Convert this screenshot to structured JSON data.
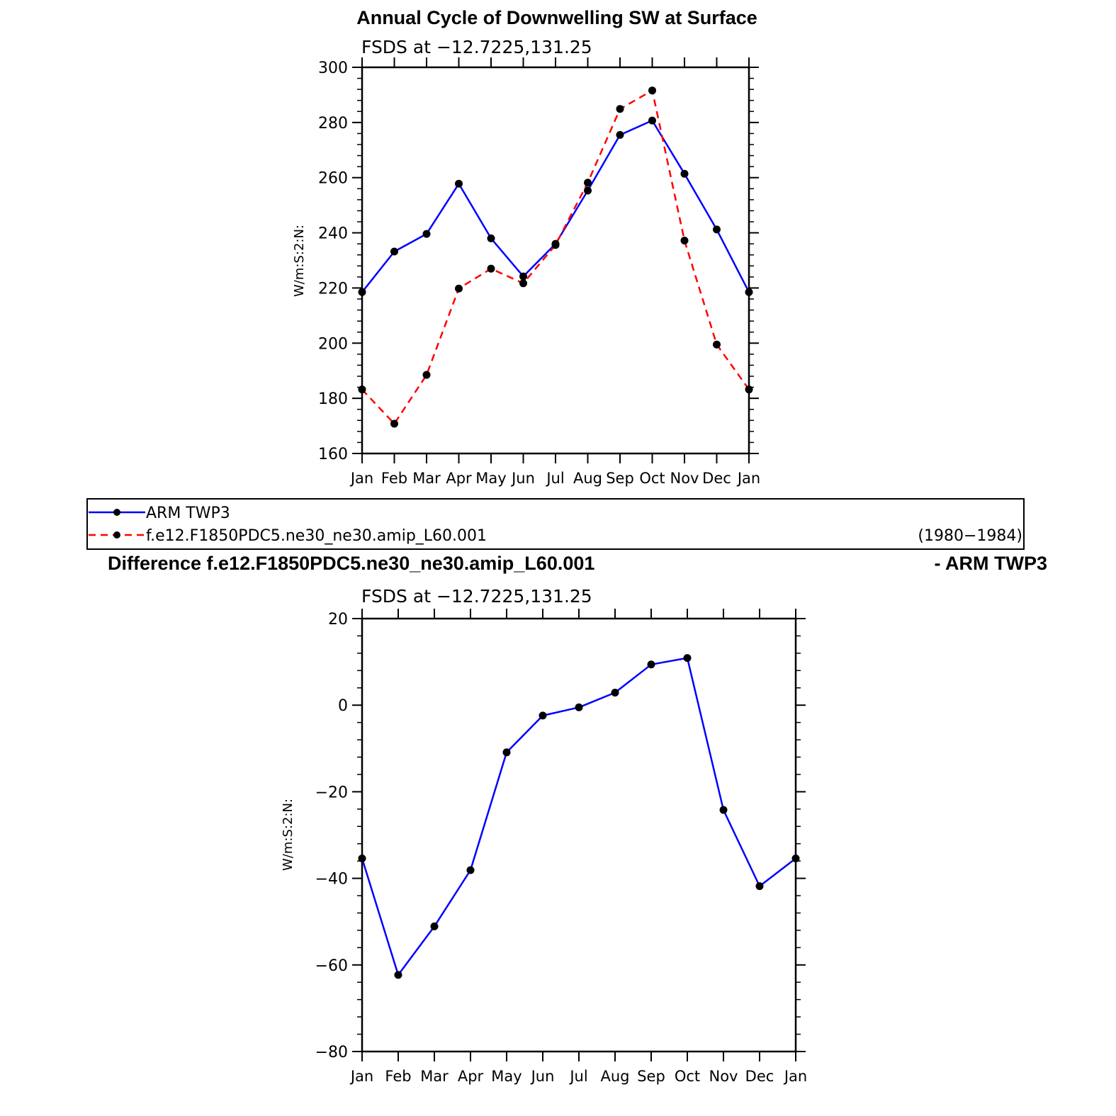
{
  "figure": {
    "top_title": "Annual Cycle of Downwelling SW at Surface",
    "diff_title_left": "Difference f.e12.F1850PDC5.ne30_ne30.amip_L60.001",
    "diff_title_right": "- ARM TWP3"
  },
  "legend": {
    "entries": [
      {
        "label": "ARM TWP3",
        "color": "#0000ff",
        "dash": "solid"
      },
      {
        "label": "f.e12.F1850PDC5.ne30_ne30.amip_L60.001",
        "color": "#ff0000",
        "dash": "dashed"
      }
    ],
    "period": "(1980−1984)"
  },
  "chart_data": [
    {
      "type": "line",
      "title": "FSDS at −12.7225,131.25",
      "xlabel": "",
      "ylabel": "W/m:S:2:N:",
      "categories": [
        "Jan",
        "Feb",
        "Mar",
        "Apr",
        "May",
        "Jun",
        "Jul",
        "Aug",
        "Sep",
        "Oct",
        "Nov",
        "Dec",
        "Jan"
      ],
      "ylim": [
        160,
        300
      ],
      "yticks": [
        160,
        180,
        200,
        220,
        240,
        260,
        280,
        300
      ],
      "series": [
        {
          "name": "ARM TWP3",
          "color": "#0000ff",
          "dash": "solid",
          "values": [
            218.5,
            233.2,
            239.6,
            257.8,
            238.0,
            224.2,
            236.0,
            255.3,
            275.5,
            280.7,
            261.4,
            241.2,
            218.5
          ]
        },
        {
          "name": "f.e12.F1850PDC5.ne30_ne30.amip_L60.001",
          "color": "#ff0000",
          "dash": "dashed",
          "values": [
            183.2,
            170.8,
            188.5,
            219.8,
            227.0,
            221.7,
            235.6,
            258.2,
            284.9,
            291.6,
            237.2,
            199.5,
            183.2
          ]
        }
      ]
    },
    {
      "type": "line",
      "title": "FSDS at −12.7225,131.25",
      "xlabel": "",
      "ylabel": "W/m:S:2:N:",
      "categories": [
        "Jan",
        "Feb",
        "Mar",
        "Apr",
        "May",
        "Jun",
        "Jul",
        "Aug",
        "Sep",
        "Oct",
        "Nov",
        "Dec",
        "Jan"
      ],
      "ylim": [
        -80,
        20
      ],
      "yticks": [
        -80,
        -60,
        -40,
        -20,
        0,
        20
      ],
      "series": [
        {
          "name": "difference",
          "color": "#0000ff",
          "dash": "solid",
          "values": [
            -35.4,
            -62.3,
            -51.1,
            -38.1,
            -10.9,
            -2.4,
            -0.5,
            2.9,
            9.4,
            10.9,
            -24.2,
            -41.8,
            -35.4
          ]
        }
      ]
    }
  ]
}
